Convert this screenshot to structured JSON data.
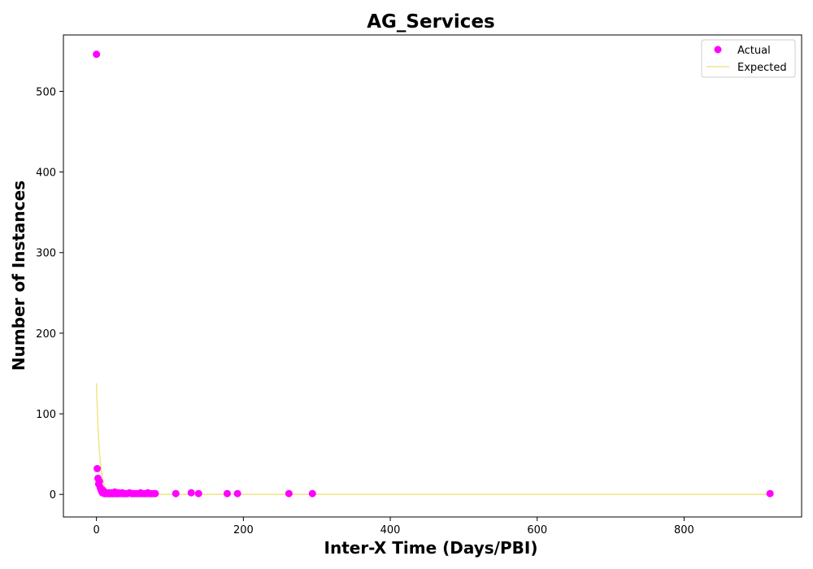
{
  "chart_data": {
    "type": "scatter",
    "title": "AG_Services",
    "xlabel": "Inter-X Time (Days/PBI)",
    "ylabel": "Number of Instances",
    "xlim": [
      -45,
      960
    ],
    "ylim": [
      -28,
      570
    ],
    "xticks": [
      0,
      200,
      400,
      600,
      800
    ],
    "yticks": [
      0,
      100,
      200,
      300,
      400,
      500
    ],
    "grid": false,
    "legend_position": "top-right",
    "series": [
      {
        "name": "Actual",
        "kind": "scatter",
        "color": "#ff00ff",
        "points": [
          [
            0,
            546
          ],
          [
            1,
            32
          ],
          [
            2,
            20
          ],
          [
            3,
            13
          ],
          [
            4,
            16
          ],
          [
            5,
            9
          ],
          [
            6,
            6
          ],
          [
            7,
            4
          ],
          [
            8,
            2
          ],
          [
            9,
            5
          ],
          [
            10,
            3
          ],
          [
            11,
            1
          ],
          [
            12,
            2
          ],
          [
            13,
            1
          ],
          [
            14,
            2
          ],
          [
            15,
            1
          ],
          [
            16,
            2
          ],
          [
            17,
            1
          ],
          [
            18,
            1
          ],
          [
            19,
            1
          ],
          [
            20,
            2
          ],
          [
            21,
            1
          ],
          [
            22,
            1
          ],
          [
            24,
            1
          ],
          [
            25,
            3
          ],
          [
            26,
            1
          ],
          [
            28,
            1
          ],
          [
            29,
            1
          ],
          [
            30,
            2
          ],
          [
            32,
            1
          ],
          [
            35,
            2
          ],
          [
            36,
            1
          ],
          [
            38,
            1
          ],
          [
            40,
            1
          ],
          [
            42,
            1
          ],
          [
            45,
            2
          ],
          [
            48,
            1
          ],
          [
            50,
            1
          ],
          [
            52,
            1
          ],
          [
            55,
            1
          ],
          [
            58,
            1
          ],
          [
            60,
            2
          ],
          [
            62,
            1
          ],
          [
            65,
            1
          ],
          [
            68,
            1
          ],
          [
            70,
            2
          ],
          [
            72,
            1
          ],
          [
            75,
            1
          ],
          [
            78,
            1
          ],
          [
            80,
            1
          ],
          [
            108,
            1
          ],
          [
            129,
            2
          ],
          [
            139,
            1
          ],
          [
            178,
            1
          ],
          [
            192,
            1
          ],
          [
            262,
            1
          ],
          [
            294,
            1
          ],
          [
            917,
            1
          ]
        ]
      },
      {
        "name": "Expected",
        "kind": "line",
        "color": "#f0e68c",
        "points": [
          [
            0,
            138
          ],
          [
            1,
            109
          ],
          [
            2,
            86
          ],
          [
            3,
            68
          ],
          [
            4,
            54
          ],
          [
            5,
            43
          ],
          [
            6,
            34
          ],
          [
            7,
            27
          ],
          [
            8,
            21
          ],
          [
            9,
            17
          ],
          [
            10,
            13
          ],
          [
            12,
            8
          ],
          [
            14,
            5
          ],
          [
            16,
            3
          ],
          [
            18,
            2
          ],
          [
            20,
            1.3
          ],
          [
            25,
            0.4
          ],
          [
            30,
            0.1
          ],
          [
            40,
            0
          ],
          [
            100,
            0
          ],
          [
            200,
            0
          ],
          [
            400,
            0
          ],
          [
            600,
            0
          ],
          [
            800,
            0
          ],
          [
            917,
            0
          ]
        ]
      }
    ]
  }
}
